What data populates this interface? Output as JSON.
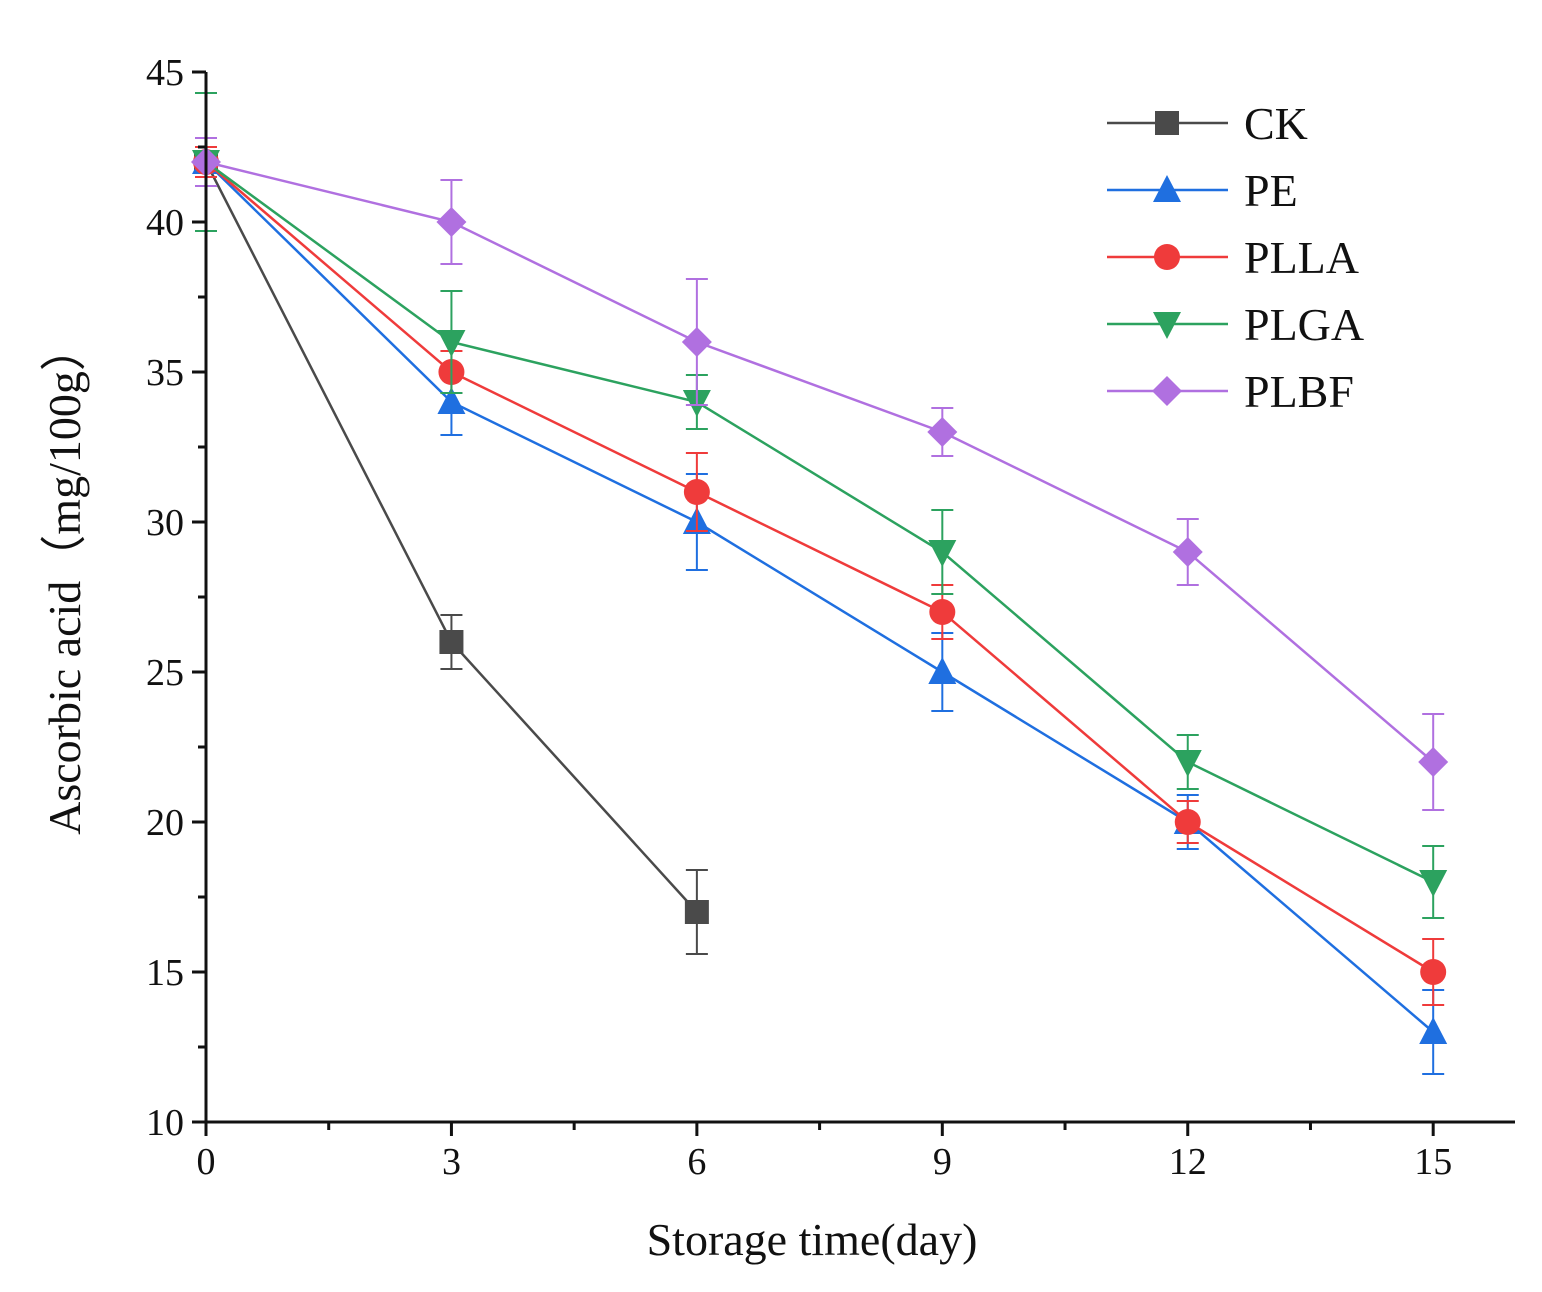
{
  "chart_data": {
    "type": "line",
    "title": "",
    "xlabel": "Storage time(day)",
    "ylabel": "Ascorbic acid（mg/100g）",
    "xlim": [
      0,
      16
    ],
    "ylim": [
      10,
      45
    ],
    "xticks": [
      0,
      3,
      6,
      9,
      12,
      15
    ],
    "xtick_labels": [
      "0",
      "3",
      "6",
      "9",
      "12",
      "15"
    ],
    "yticks": [
      10,
      15,
      20,
      25,
      30,
      35,
      40,
      45
    ],
    "ytick_labels": [
      "10",
      "15",
      "20",
      "25",
      "30",
      "35",
      "40",
      "45"
    ],
    "x_minor_ticks": [
      1.5,
      4.5,
      7.5,
      10.5,
      13.5
    ],
    "y_minor_ticks": [
      12.5,
      17.5,
      22.5,
      27.5,
      32.5,
      37.5,
      42.5
    ],
    "grid": false,
    "legend_position": "top-right",
    "series": [
      {
        "name": "CK",
        "color": "#4a4a4a",
        "marker": "square",
        "x": [
          0,
          3,
          6
        ],
        "values": [
          42,
          26,
          17
        ],
        "errors": [
          0.5,
          0.9,
          1.4
        ]
      },
      {
        "name": "PE",
        "color": "#1f6fe0",
        "marker": "triangle-up",
        "x": [
          0,
          3,
          6,
          9,
          12,
          15
        ],
        "values": [
          42,
          34,
          30,
          25,
          20,
          13
        ],
        "errors": [
          0.5,
          1.1,
          1.6,
          1.3,
          0.9,
          1.4
        ]
      },
      {
        "name": "PLLA",
        "color": "#ef3b3b",
        "marker": "circle",
        "x": [
          0,
          3,
          6,
          9,
          12,
          15
        ],
        "values": [
          42,
          35,
          31,
          27,
          20,
          15
        ],
        "errors": [
          0.5,
          0.7,
          1.3,
          0.9,
          0.7,
          1.1
        ]
      },
      {
        "name": "PLGA",
        "color": "#2ca25f",
        "marker": "triangle-down",
        "x": [
          0,
          3,
          6,
          9,
          12,
          15
        ],
        "values": [
          42,
          36,
          34,
          29,
          22,
          18
        ],
        "errors": [
          2.3,
          1.7,
          0.9,
          1.4,
          0.9,
          1.2
        ]
      },
      {
        "name": "PLBF",
        "color": "#b070e0",
        "marker": "diamond",
        "x": [
          0,
          3,
          6,
          9,
          12,
          15
        ],
        "values": [
          42,
          40,
          36,
          33,
          29,
          22
        ],
        "errors": [
          0.8,
          1.4,
          2.1,
          0.8,
          1.1,
          1.6
        ]
      }
    ]
  }
}
